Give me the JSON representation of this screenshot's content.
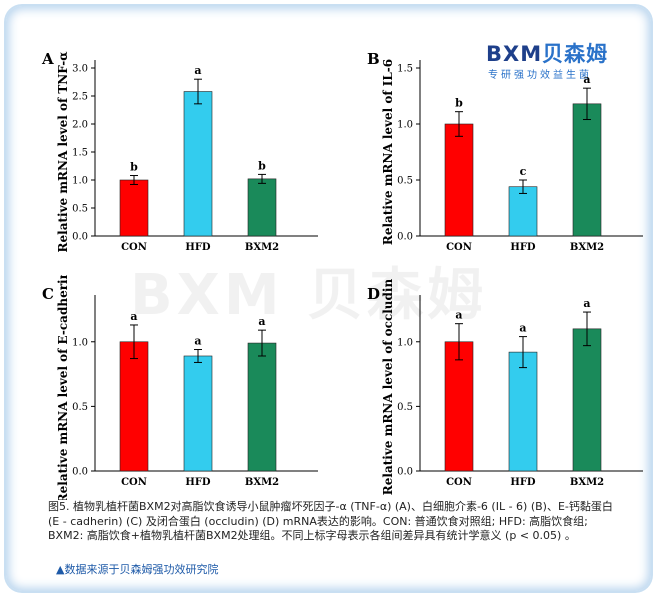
{
  "logo": {
    "brand_latin": "BXM",
    "brand_cn": "贝森姆",
    "tagline": "专研强功效益生菌"
  },
  "watermark": "BXM 贝森姆",
  "caption": "图5. 植物乳植杆菌BXM2对高脂饮食诱导小鼠肿瘤坏死因子-α (TNF-α) (A)、白细胞介素-6 (IL - 6) (B)、E-钙黏蛋白 (E - cadherin) (C) 及闭合蛋白 (occludin) (D) mRNA表达的影响。CON: 普通饮食对照组; HFD: 高脂饮食组; BXM2: 高脂饮食+植物乳植杆菌BXM2处理组。不同上标字母表示各组间差异具有统计学意义 (p < 0.05) 。",
  "source_note": "▲数据来源于贝森姆强功效研究院",
  "colors": {
    "CON": "#ff0000",
    "HFD": "#33ccee",
    "BXM2": "#1a8a5a"
  },
  "chart_data": [
    {
      "panel_label": "A",
      "type": "bar",
      "ylabel": "Relative mRNA level of TNF-α",
      "categories": [
        "CON",
        "HFD",
        "BXM2"
      ],
      "values": [
        1.0,
        2.58,
        1.02
      ],
      "errors": [
        0.08,
        0.22,
        0.08
      ],
      "sig_letters": [
        "b",
        "a",
        "b"
      ],
      "ylim": [
        0,
        3.0
      ],
      "yticks": [
        "0.0",
        "0.5",
        "1.0",
        "1.5",
        "2.0",
        "2.5",
        "3.0"
      ]
    },
    {
      "panel_label": "B",
      "type": "bar",
      "ylabel": "Relative mRNA level of IL-6",
      "categories": [
        "CON",
        "HFD",
        "BXM2"
      ],
      "values": [
        1.0,
        0.44,
        1.18
      ],
      "errors": [
        0.11,
        0.06,
        0.14
      ],
      "sig_letters": [
        "b",
        "c",
        "a"
      ],
      "ylim": [
        0,
        1.5
      ],
      "yticks": [
        "0.0",
        "0.5",
        "1.0",
        "1.5"
      ]
    },
    {
      "panel_label": "C",
      "type": "bar",
      "ylabel": "Relative mRNA level of E-cadherin",
      "categories": [
        "CON",
        "HFD",
        "BXM2"
      ],
      "values": [
        1.0,
        0.89,
        0.99
      ],
      "errors": [
        0.13,
        0.05,
        0.1
      ],
      "sig_letters": [
        "a",
        "a",
        "a"
      ],
      "ylim": [
        0,
        1.3
      ],
      "yticks": [
        "0.0",
        "0.5",
        "1.0"
      ]
    },
    {
      "panel_label": "D",
      "type": "bar",
      "ylabel": "Relative mRNA level of occludin",
      "categories": [
        "CON",
        "HFD",
        "BXM2"
      ],
      "values": [
        1.0,
        0.92,
        1.1
      ],
      "errors": [
        0.14,
        0.12,
        0.13
      ],
      "sig_letters": [
        "a",
        "a",
        "a"
      ],
      "ylim": [
        0,
        1.3
      ],
      "yticks": [
        "0.0",
        "0.5",
        "1.0"
      ]
    }
  ]
}
